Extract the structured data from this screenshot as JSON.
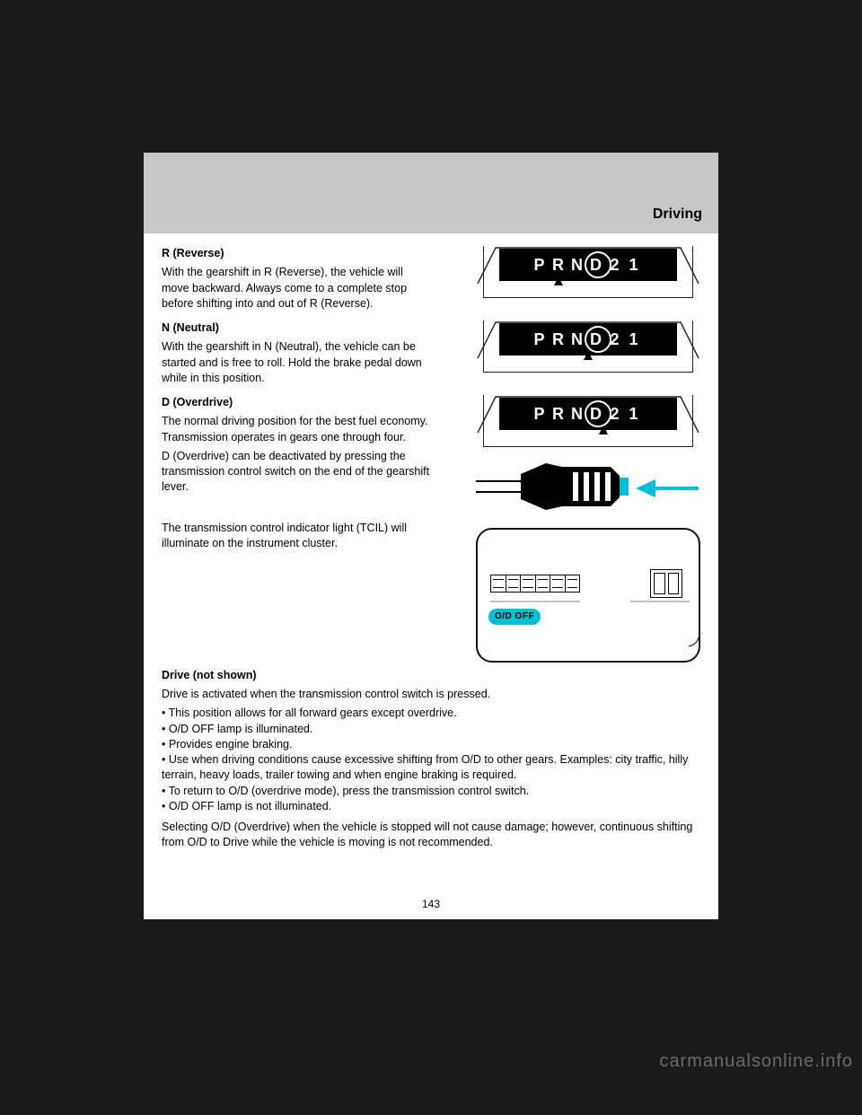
{
  "header": {
    "title": "Driving"
  },
  "gear_letters": [
    "P",
    "R",
    "N",
    "D",
    "2",
    "1"
  ],
  "figures": {
    "fig1": {
      "selected_index": 3,
      "pointer_between": [
        1,
        2
      ]
    },
    "fig2": {
      "selected_index": 3,
      "pointer_between": [
        2,
        3
      ]
    },
    "fig3": {
      "selected_index": 3,
      "pointer_between": [
        3,
        3
      ]
    },
    "arrow_color": "#00bfd6",
    "od_label": "O/D OFF",
    "od_bg": "#00c0d4"
  },
  "sections": {
    "reverse": {
      "heading": "R (Reverse)",
      "text": "With the gearshift in R (Reverse), the vehicle will move backward. Always come to a complete stop before shifting into and out of R (Reverse)."
    },
    "neutral": {
      "heading": "N (Neutral)",
      "text": "With the gearshift in N (Neutral), the vehicle can be started and is free to roll. Hold the brake pedal down while in this position."
    },
    "overdrive": {
      "heading": "D (Overdrive)",
      "text1": "The normal driving position for the best fuel economy. Transmission operates in gears one through four.",
      "text2": "D (Overdrive) can be deactivated by pressing the transmission control switch on the end of the gearshift lever.",
      "text3": "The transmission control indicator light (TCIL) will illuminate on the instrument cluster."
    },
    "drive": {
      "heading": "Drive (not shown)",
      "text1": "Drive is activated when the transmission control switch is pressed.",
      "bullets": [
        "This position allows for all forward gears except overdrive.",
        "O/D OFF lamp is illuminated.",
        "Provides engine braking.",
        "Use when driving conditions cause excessive shifting from O/D to other gears. Examples: city traffic, hilly terrain, heavy loads, trailer towing and when engine braking is required.",
        "To return to O/D (overdrive mode), press the transmission control switch.",
        "O/D OFF lamp is not illuminated."
      ],
      "text2": "Selecting O/D (Overdrive) when the vehicle is stopped will not cause damage; however, continuous shifting from O/D to Drive while the vehicle is moving is not recommended."
    }
  },
  "page_number": "143"
}
